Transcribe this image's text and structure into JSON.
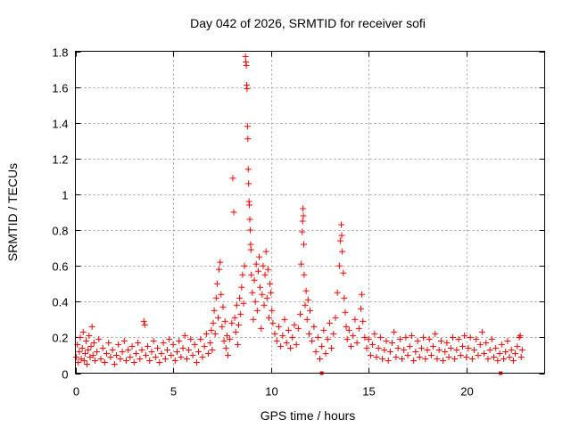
{
  "chart_data": {
    "type": "scatter",
    "title": "Day 042 of 2026, SRMTID for receiver sofi",
    "xlabel": "GPS time / hours",
    "ylabel": "SRMTID / TECUs",
    "xlim": [
      0,
      24
    ],
    "ylim": [
      0,
      1.8
    ],
    "xticks": [
      "0",
      "5",
      "10",
      "15",
      "20"
    ],
    "xtick_values": [
      0,
      5,
      10,
      15,
      20
    ],
    "yticks": [
      "0",
      "0.2",
      "0.4",
      "0.6",
      "0.8",
      "1",
      "1.2",
      "1.4",
      "1.6",
      "1.8"
    ],
    "ytick_values": [
      0,
      0.2,
      0.4,
      0.6,
      0.8,
      1.0,
      1.2,
      1.4,
      1.6,
      1.8
    ],
    "grid": true,
    "marker": "+",
    "color": "#ff0000",
    "series": [
      {
        "name": "SRMTID",
        "points": [
          [
            0.05,
            0.09
          ],
          [
            0.1,
            0.16
          ],
          [
            0.15,
            0.06
          ],
          [
            0.2,
            0.12
          ],
          [
            0.25,
            0.2
          ],
          [
            0.3,
            0.08
          ],
          [
            0.35,
            0.14
          ],
          [
            0.4,
            0.23
          ],
          [
            0.45,
            0.07
          ],
          [
            0.5,
            0.11
          ],
          [
            0.55,
            0.18
          ],
          [
            0.6,
            0.05
          ],
          [
            0.65,
            0.13
          ],
          [
            0.7,
            0.21
          ],
          [
            0.75,
            0.09
          ],
          [
            0.8,
            0.15
          ],
          [
            0.85,
            0.26
          ],
          [
            0.9,
            0.1
          ],
          [
            0.95,
            0.17
          ],
          [
            1.0,
            0.07
          ],
          [
            1.1,
            0.12
          ],
          [
            1.2,
            0.19
          ],
          [
            1.3,
            0.08
          ],
          [
            1.4,
            0.14
          ],
          [
            1.5,
            0.06
          ],
          [
            1.6,
            0.11
          ],
          [
            1.7,
            0.17
          ],
          [
            1.8,
            0.09
          ],
          [
            1.9,
            0.13
          ],
          [
            2.0,
            0.05
          ],
          [
            2.1,
            0.1
          ],
          [
            2.2,
            0.16
          ],
          [
            2.3,
            0.08
          ],
          [
            2.4,
            0.12
          ],
          [
            2.5,
            0.18
          ],
          [
            2.6,
            0.07
          ],
          [
            2.7,
            0.13
          ],
          [
            2.8,
            0.09
          ],
          [
            2.9,
            0.15
          ],
          [
            3.0,
            0.06
          ],
          [
            3.1,
            0.11
          ],
          [
            3.2,
            0.17
          ],
          [
            3.3,
            0.08
          ],
          [
            3.4,
            0.13
          ],
          [
            3.5,
            0.29
          ],
          [
            3.55,
            0.27
          ],
          [
            3.6,
            0.1
          ],
          [
            3.7,
            0.15
          ],
          [
            3.8,
            0.07
          ],
          [
            3.9,
            0.12
          ],
          [
            4.0,
            0.18
          ],
          [
            4.1,
            0.09
          ],
          [
            4.2,
            0.14
          ],
          [
            4.3,
            0.06
          ],
          [
            4.4,
            0.11
          ],
          [
            4.5,
            0.17
          ],
          [
            4.6,
            0.08
          ],
          [
            4.7,
            0.13
          ],
          [
            4.8,
            0.19
          ],
          [
            4.9,
            0.1
          ],
          [
            5.0,
            0.16
          ],
          [
            5.1,
            0.07
          ],
          [
            5.2,
            0.12
          ],
          [
            5.3,
            0.18
          ],
          [
            5.4,
            0.09
          ],
          [
            5.5,
            0.14
          ],
          [
            5.6,
            0.21
          ],
          [
            5.7,
            0.08
          ],
          [
            5.8,
            0.13
          ],
          [
            5.9,
            0.19
          ],
          [
            6.0,
            0.1
          ],
          [
            6.1,
            0.16
          ],
          [
            6.2,
            0.06
          ],
          [
            6.3,
            0.12
          ],
          [
            6.4,
            0.19
          ],
          [
            6.5,
            0.09
          ],
          [
            6.6,
            0.15
          ],
          [
            6.7,
            0.22
          ],
          [
            6.8,
            0.11
          ],
          [
            6.9,
            0.17
          ],
          [
            6.95,
            0.24
          ],
          [
            7.0,
            0.13
          ],
          [
            7.05,
            0.28
          ],
          [
            7.1,
            0.35
          ],
          [
            7.15,
            0.22
          ],
          [
            7.2,
            0.42
          ],
          [
            7.25,
            0.5
          ],
          [
            7.3,
            0.31
          ],
          [
            7.35,
            0.58
          ],
          [
            7.4,
            0.62
          ],
          [
            7.45,
            0.44
          ],
          [
            7.5,
            0.26
          ],
          [
            7.55,
            0.37
          ],
          [
            7.6,
            0.18
          ],
          [
            7.65,
            0.29
          ],
          [
            7.7,
            0.14
          ],
          [
            7.75,
            0.21
          ],
          [
            7.8,
            0.1
          ],
          [
            7.9,
            0.19
          ],
          [
            8.0,
            0.28
          ],
          [
            8.05,
            1.09
          ],
          [
            8.1,
            0.9
          ],
          [
            8.15,
            0.31
          ],
          [
            8.2,
            0.23
          ],
          [
            8.25,
            0.38
          ],
          [
            8.3,
            0.16
          ],
          [
            8.35,
            0.27
          ],
          [
            8.4,
            0.42
          ],
          [
            8.45,
            0.33
          ],
          [
            8.5,
            0.48
          ],
          [
            8.55,
            0.55
          ],
          [
            8.6,
            0.39
          ],
          [
            8.65,
            0.6
          ],
          [
            8.7,
            1.77
          ],
          [
            8.72,
            1.74
          ],
          [
            8.74,
            1.72
          ],
          [
            8.76,
            1.61
          ],
          [
            8.78,
            1.59
          ],
          [
            8.8,
            1.38
          ],
          [
            8.82,
            1.31
          ],
          [
            8.84,
            1.14
          ],
          [
            8.86,
            1.06
          ],
          [
            8.88,
            0.96
          ],
          [
            8.9,
            0.94
          ],
          [
            8.92,
            0.86
          ],
          [
            8.94,
            0.8
          ],
          [
            8.96,
            0.72
          ],
          [
            8.98,
            0.69
          ],
          [
            9.0,
            0.55
          ],
          [
            9.05,
            0.45
          ],
          [
            9.1,
            0.3
          ],
          [
            9.15,
            0.52
          ],
          [
            9.2,
            0.4
          ],
          [
            9.25,
            0.61
          ],
          [
            9.3,
            0.35
          ],
          [
            9.35,
            0.57
          ],
          [
            9.4,
            0.65
          ],
          [
            9.45,
            0.48
          ],
          [
            9.5,
            0.25
          ],
          [
            9.55,
            0.44
          ],
          [
            9.6,
            0.6
          ],
          [
            9.65,
            0.38
          ],
          [
            9.7,
            0.55
          ],
          [
            9.75,
            0.68
          ],
          [
            9.8,
            0.42
          ],
          [
            9.85,
            0.58
          ],
          [
            9.9,
            0.31
          ],
          [
            9.95,
            0.5
          ],
          [
            10.0,
            0.45
          ],
          [
            10.05,
            0.35
          ],
          [
            10.1,
            0.28
          ],
          [
            10.2,
            0.22
          ],
          [
            10.3,
            0.18
          ],
          [
            10.4,
            0.26
          ],
          [
            10.5,
            0.15
          ],
          [
            10.6,
            0.21
          ],
          [
            10.7,
            0.3
          ],
          [
            10.8,
            0.17
          ],
          [
            10.9,
            0.24
          ],
          [
            11.0,
            0.14
          ],
          [
            11.1,
            0.2
          ],
          [
            11.2,
            0.27
          ],
          [
            11.3,
            0.16
          ],
          [
            11.4,
            0.25
          ],
          [
            11.5,
            0.33
          ],
          [
            11.55,
            0.61
          ],
          [
            11.6,
            0.79
          ],
          [
            11.62,
            0.85
          ],
          [
            11.64,
            0.92
          ],
          [
            11.66,
            0.88
          ],
          [
            11.68,
            0.72
          ],
          [
            11.7,
            0.55
          ],
          [
            11.75,
            0.38
          ],
          [
            11.8,
            0.46
          ],
          [
            11.85,
            0.3
          ],
          [
            11.9,
            0.41
          ],
          [
            11.95,
            0.22
          ],
          [
            12.0,
            0.35
          ],
          [
            12.1,
            0.18
          ],
          [
            12.2,
            0.26
          ],
          [
            12.3,
            0.12
          ],
          [
            12.4,
            0.2
          ],
          [
            12.5,
            0.08
          ],
          [
            12.6,
            0.15
          ],
          [
            12.7,
            0.24
          ],
          [
            12.8,
            0.11
          ],
          [
            12.9,
            0.19
          ],
          [
            13.0,
            0.28
          ],
          [
            13.1,
            0.14
          ],
          [
            13.2,
            0.22
          ],
          [
            13.3,
            0.31
          ],
          [
            13.4,
            0.45
          ],
          [
            13.5,
            0.6
          ],
          [
            13.55,
            0.74
          ],
          [
            13.6,
            0.83
          ],
          [
            13.62,
            0.77
          ],
          [
            13.65,
            0.68
          ],
          [
            13.7,
            0.56
          ],
          [
            13.75,
            0.42
          ],
          [
            13.8,
            0.34
          ],
          [
            13.85,
            0.26
          ],
          [
            13.9,
            0.19
          ],
          [
            14.0,
            0.24
          ],
          [
            14.1,
            0.15
          ],
          [
            14.2,
            0.21
          ],
          [
            14.3,
            0.3
          ],
          [
            14.4,
            0.17
          ],
          [
            14.5,
            0.25
          ],
          [
            14.6,
            0.36
          ],
          [
            14.65,
            0.44
          ],
          [
            14.7,
            0.29
          ],
          [
            14.8,
            0.2
          ],
          [
            14.9,
            0.14
          ],
          [
            15.0,
            0.19
          ],
          [
            15.1,
            0.1
          ],
          [
            15.2,
            0.16
          ],
          [
            15.3,
            0.22
          ],
          [
            15.4,
            0.09
          ],
          [
            15.5,
            0.14
          ],
          [
            15.6,
            0.2
          ],
          [
            15.7,
            0.08
          ],
          [
            15.8,
            0.13
          ],
          [
            15.9,
            0.18
          ],
          [
            16.0,
            0.07
          ],
          [
            16.1,
            0.12
          ],
          [
            16.2,
            0.17
          ],
          [
            16.3,
            0.23
          ],
          [
            16.4,
            0.09
          ],
          [
            16.5,
            0.14
          ],
          [
            16.6,
            0.19
          ],
          [
            16.7,
            0.08
          ],
          [
            16.8,
            0.13
          ],
          [
            16.9,
            0.2
          ],
          [
            17.0,
            0.1
          ],
          [
            17.1,
            0.15
          ],
          [
            17.2,
            0.21
          ],
          [
            17.3,
            0.07
          ],
          [
            17.4,
            0.12
          ],
          [
            17.5,
            0.18
          ],
          [
            17.6,
            0.09
          ],
          [
            17.7,
            0.14
          ],
          [
            17.8,
            0.2
          ],
          [
            17.9,
            0.08
          ],
          [
            18.0,
            0.13
          ],
          [
            18.1,
            0.19
          ],
          [
            18.2,
            0.1
          ],
          [
            18.3,
            0.15
          ],
          [
            18.4,
            0.22
          ],
          [
            18.5,
            0.08
          ],
          [
            18.6,
            0.13
          ],
          [
            18.7,
            0.18
          ],
          [
            18.8,
            0.07
          ],
          [
            18.9,
            0.12
          ],
          [
            19.0,
            0.17
          ],
          [
            19.1,
            0.09
          ],
          [
            19.2,
            0.14
          ],
          [
            19.3,
            0.2
          ],
          [
            19.4,
            0.08
          ],
          [
            19.5,
            0.13
          ],
          [
            19.6,
            0.19
          ],
          [
            19.7,
            0.1
          ],
          [
            19.8,
            0.15
          ],
          [
            19.9,
            0.21
          ],
          [
            20.0,
            0.09
          ],
          [
            20.1,
            0.14
          ],
          [
            20.2,
            0.2
          ],
          [
            20.3,
            0.08
          ],
          [
            20.4,
            0.13
          ],
          [
            20.5,
            0.19
          ],
          [
            20.6,
            0.1
          ],
          [
            20.7,
            0.16
          ],
          [
            20.8,
            0.23
          ],
          [
            20.9,
            0.11
          ],
          [
            21.0,
            0.17
          ],
          [
            21.1,
            0.08
          ],
          [
            21.2,
            0.13
          ],
          [
            21.3,
            0.19
          ],
          [
            21.4,
            0.09
          ],
          [
            21.5,
            0.14
          ],
          [
            21.6,
            0.07
          ],
          [
            21.7,
            0.11
          ],
          [
            21.8,
            0.16
          ],
          [
            21.9,
            0.08
          ],
          [
            22.0,
            0.12
          ],
          [
            22.1,
            0.18
          ],
          [
            22.2,
            0.09
          ],
          [
            22.3,
            0.13
          ],
          [
            22.4,
            0.07
          ],
          [
            22.5,
            0.11
          ],
          [
            22.6,
            0.15
          ],
          [
            22.7,
            0.2
          ],
          [
            22.75,
            0.21
          ],
          [
            22.8,
            0.09
          ],
          [
            22.85,
            0.13
          ]
        ]
      }
    ],
    "baseline_markers": [
      12.6,
      21.75
    ]
  }
}
